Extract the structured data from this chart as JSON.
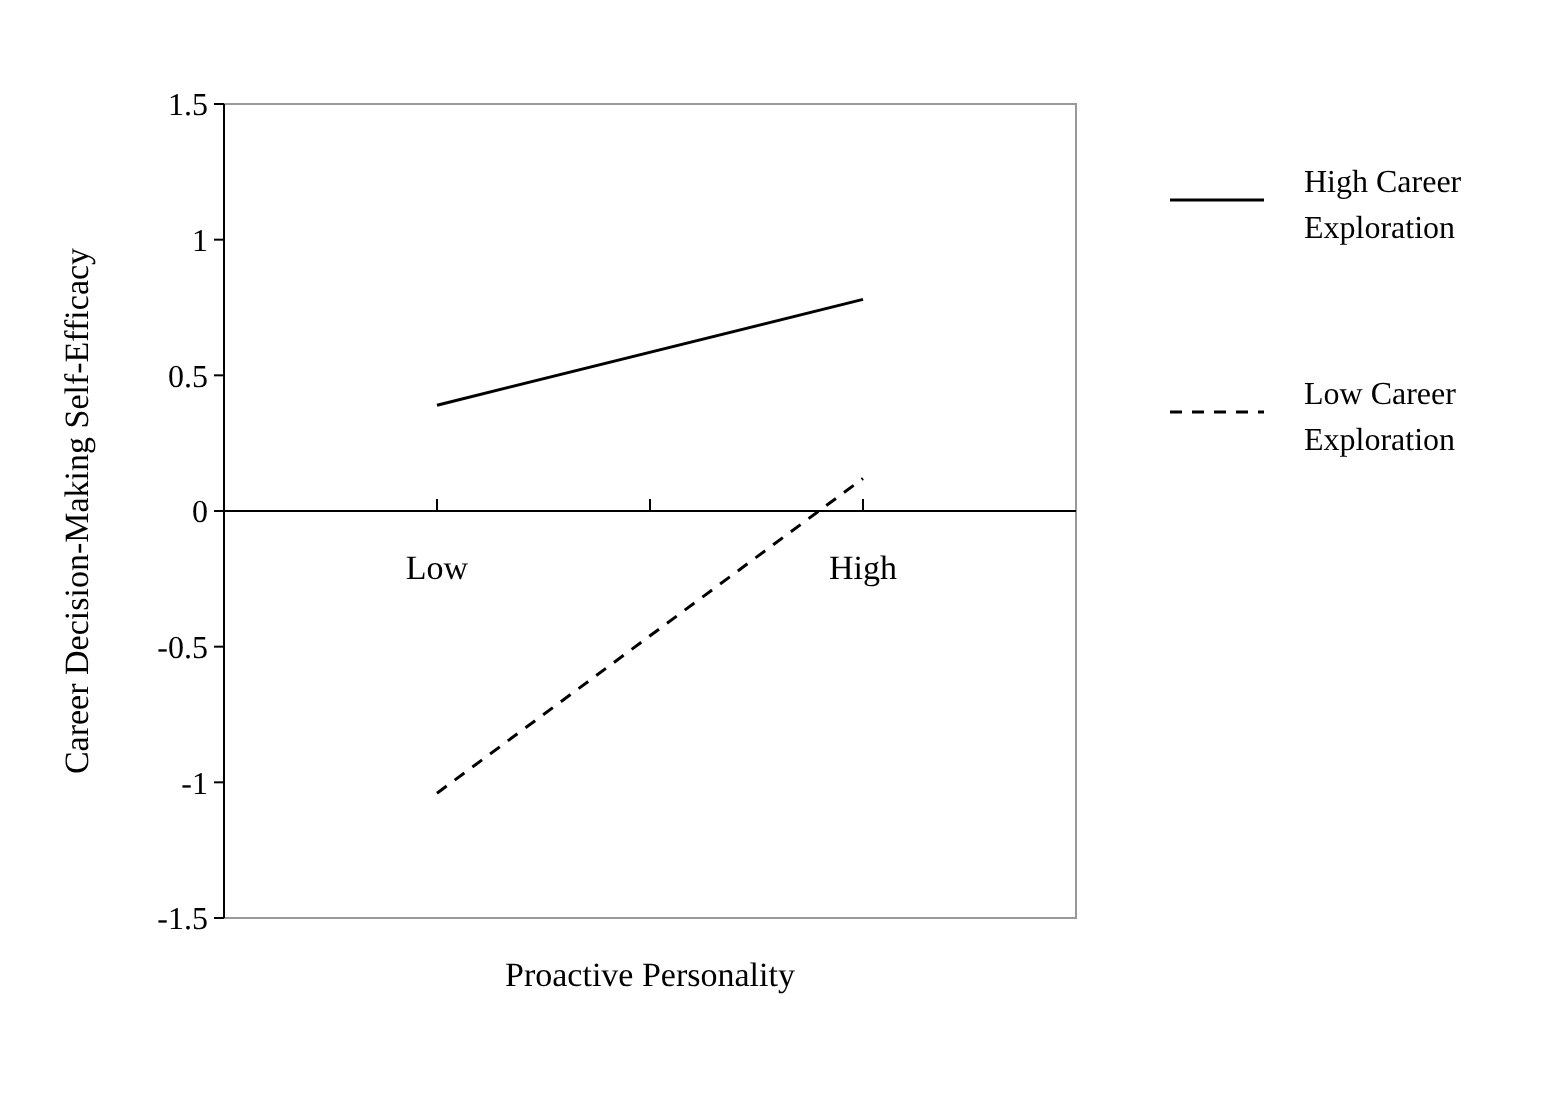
{
  "chart_data": {
    "type": "line",
    "xlabel": "Proactive Personality",
    "ylabel": "Career Decision-Making Self-Efficacy",
    "categories": [
      "Low",
      "High"
    ],
    "ylim": [
      -1.5,
      1.5
    ],
    "yticks": [
      -1.5,
      -1,
      -0.5,
      0,
      0.5,
      1,
      1.5
    ],
    "legend": "right",
    "marker": "none",
    "grid": false,
    "series": [
      {
        "name": "High Career Exploration",
        "color": "#000000",
        "line_style": "solid",
        "values": [
          0.39,
          0.78
        ]
      },
      {
        "name": "Low Career Exploration",
        "color": "#000000",
        "line_style": "dashed",
        "values": [
          -1.04,
          0.12
        ]
      }
    ]
  }
}
